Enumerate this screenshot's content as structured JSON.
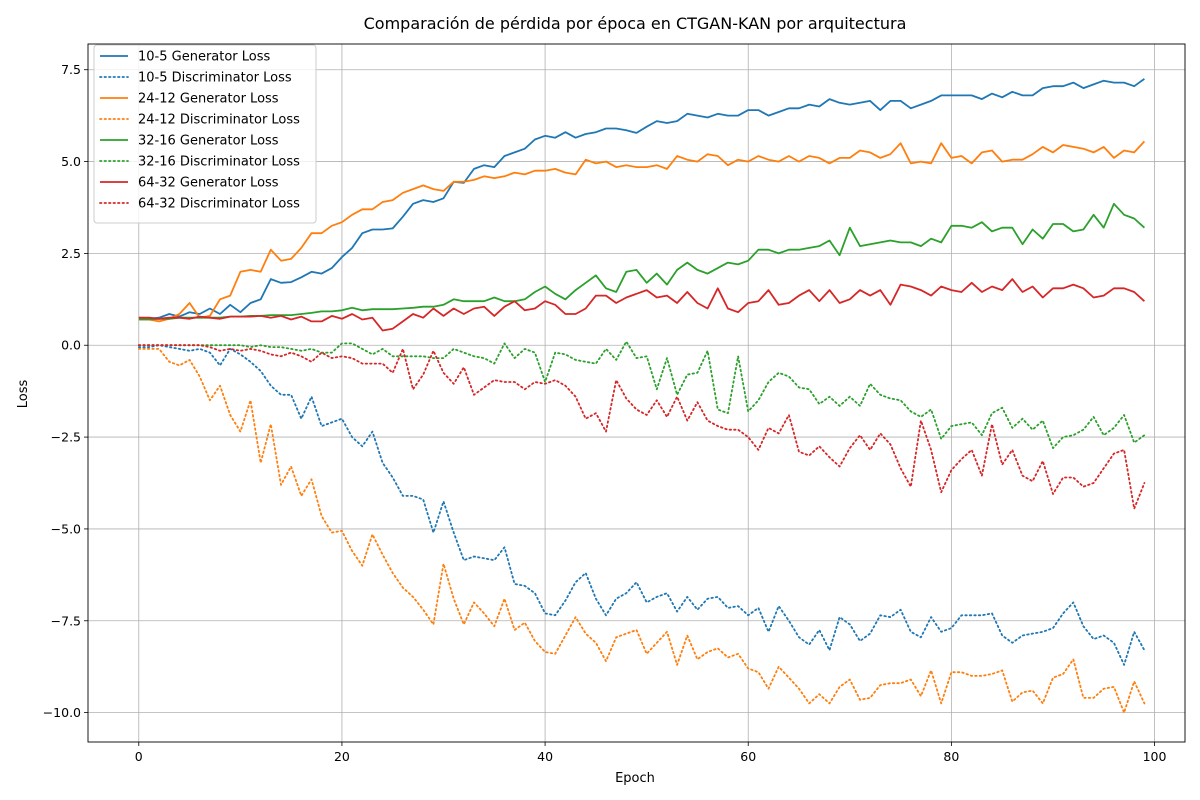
{
  "chart_data": {
    "type": "line",
    "title": "Comparación de pérdida por época en CTGAN-KAN por arquitectura",
    "xlabel": "Epoch",
    "ylabel": "Loss",
    "xlim": [
      -5,
      103
    ],
    "ylim": [
      -10.8,
      8.2
    ],
    "xticks": [
      0,
      20,
      40,
      60,
      80,
      100
    ],
    "xtick_labels": [
      "0",
      "20",
      "40",
      "60",
      "80",
      "100"
    ],
    "yticks": [
      -10.0,
      -7.5,
      -5.0,
      -2.5,
      0.0,
      2.5,
      5.0,
      7.5
    ],
    "ytick_labels": [
      "−10.0",
      "−7.5",
      "−5.0",
      "−2.5",
      "0.0",
      "2.5",
      "5.0",
      "7.5"
    ],
    "grid": true,
    "legend_position": "top-left",
    "x": [
      0,
      1,
      2,
      3,
      4,
      5,
      6,
      7,
      8,
      9,
      10,
      11,
      12,
      13,
      14,
      15,
      16,
      17,
      18,
      19,
      20,
      21,
      22,
      23,
      24,
      25,
      26,
      27,
      28,
      29,
      30,
      31,
      32,
      33,
      34,
      35,
      36,
      37,
      38,
      39,
      40,
      41,
      42,
      43,
      44,
      45,
      46,
      47,
      48,
      49,
      50,
      51,
      52,
      53,
      54,
      55,
      56,
      57,
      58,
      59,
      60,
      61,
      62,
      63,
      64,
      65,
      66,
      67,
      68,
      69,
      70,
      71,
      72,
      73,
      74,
      75,
      76,
      77,
      78,
      79,
      80,
      81,
      82,
      83,
      84,
      85,
      86,
      87,
      88,
      89,
      90,
      91,
      92,
      93,
      94,
      95,
      96,
      97,
      98,
      99
    ],
    "series": [
      {
        "name": "10-5 Generator Loss",
        "color": "#1f77b4",
        "style": "solid",
        "values": [
          0.75,
          0.72,
          0.75,
          0.85,
          0.78,
          0.9,
          0.85,
          1.0,
          0.85,
          1.1,
          0.9,
          1.15,
          1.25,
          1.8,
          1.7,
          1.72,
          1.85,
          2.0,
          1.95,
          2.1,
          2.4,
          2.65,
          3.05,
          3.15,
          3.15,
          3.18,
          3.5,
          3.85,
          3.95,
          3.9,
          4.0,
          4.45,
          4.42,
          4.8,
          4.9,
          4.85,
          5.15,
          5.25,
          5.35,
          5.6,
          5.7,
          5.65,
          5.8,
          5.65,
          5.75,
          5.8,
          5.9,
          5.9,
          5.85,
          5.78,
          5.95,
          6.1,
          6.05,
          6.1,
          6.3,
          6.25,
          6.2,
          6.3,
          6.25,
          6.25,
          6.4,
          6.4,
          6.25,
          6.35,
          6.45,
          6.45,
          6.55,
          6.5,
          6.7,
          6.6,
          6.55,
          6.6,
          6.65,
          6.4,
          6.65,
          6.65,
          6.45,
          6.55,
          6.65,
          6.8,
          6.8,
          6.8,
          6.8,
          6.7,
          6.85,
          6.75,
          6.9,
          6.8,
          6.8,
          7.0,
          7.05,
          7.05,
          7.15,
          7.0,
          7.1,
          7.2,
          7.15,
          7.15,
          7.05,
          7.25
        ]
      },
      {
        "name": "10-5 Discriminator Loss",
        "color": "#1f77b4",
        "style": "dotted",
        "values": [
          -0.05,
          -0.05,
          0.0,
          -0.05,
          -0.1,
          -0.15,
          -0.1,
          -0.2,
          -0.55,
          -0.1,
          -0.25,
          -0.45,
          -0.7,
          -1.1,
          -1.35,
          -1.35,
          -2.0,
          -1.4,
          -2.2,
          -2.1,
          -2.0,
          -2.5,
          -2.75,
          -2.35,
          -3.2,
          -3.6,
          -4.1,
          -4.1,
          -4.2,
          -5.1,
          -4.25,
          -5.1,
          -5.85,
          -5.75,
          -5.8,
          -5.85,
          -5.5,
          -6.5,
          -6.55,
          -6.75,
          -7.3,
          -7.35,
          -6.95,
          -6.45,
          -6.2,
          -6.9,
          -7.35,
          -6.9,
          -6.75,
          -6.45,
          -7.0,
          -6.85,
          -6.75,
          -7.25,
          -6.85,
          -7.2,
          -6.9,
          -6.85,
          -7.15,
          -7.1,
          -7.35,
          -7.15,
          -7.8,
          -7.1,
          -7.5,
          -7.95,
          -8.15,
          -7.75,
          -8.3,
          -7.4,
          -7.6,
          -8.05,
          -7.85,
          -7.35,
          -7.4,
          -7.2,
          -7.8,
          -7.95,
          -7.4,
          -7.8,
          -7.7,
          -7.35,
          -7.35,
          -7.35,
          -7.3,
          -7.9,
          -8.1,
          -7.9,
          -7.85,
          -7.8,
          -7.7,
          -7.3,
          -7.0,
          -7.65,
          -8.0,
          -7.9,
          -8.1,
          -8.7,
          -7.8,
          -8.3
        ]
      },
      {
        "name": "24-12 Generator Loss",
        "color": "#ff7f0e",
        "style": "solid",
        "values": [
          0.7,
          0.7,
          0.65,
          0.72,
          0.85,
          1.15,
          0.75,
          0.8,
          1.25,
          1.35,
          2.0,
          2.05,
          2.0,
          2.6,
          2.3,
          2.35,
          2.65,
          3.05,
          3.05,
          3.25,
          3.35,
          3.55,
          3.7,
          3.7,
          3.9,
          3.95,
          4.15,
          4.25,
          4.35,
          4.25,
          4.2,
          4.45,
          4.45,
          4.5,
          4.6,
          4.55,
          4.6,
          4.7,
          4.65,
          4.75,
          4.75,
          4.8,
          4.7,
          4.65,
          5.05,
          4.95,
          5.0,
          4.85,
          4.9,
          4.85,
          4.85,
          4.9,
          4.8,
          5.15,
          5.05,
          5.0,
          5.2,
          5.15,
          4.9,
          5.05,
          5.0,
          5.15,
          5.05,
          5.0,
          5.15,
          5.0,
          5.15,
          5.1,
          4.95,
          5.1,
          5.1,
          5.3,
          5.25,
          5.1,
          5.2,
          5.5,
          4.95,
          5.0,
          4.95,
          5.5,
          5.1,
          5.15,
          4.95,
          5.25,
          5.3,
          5.0,
          5.05,
          5.05,
          5.2,
          5.4,
          5.25,
          5.45,
          5.4,
          5.35,
          5.25,
          5.4,
          5.1,
          5.3,
          5.25,
          5.55
        ]
      },
      {
        "name": "24-12 Discriminator Loss",
        "color": "#ff7f0e",
        "style": "dotted",
        "values": [
          -0.1,
          -0.1,
          -0.1,
          -0.45,
          -0.55,
          -0.4,
          -0.85,
          -1.5,
          -1.1,
          -1.9,
          -2.35,
          -1.5,
          -3.2,
          -2.15,
          -3.8,
          -3.3,
          -4.1,
          -3.65,
          -4.65,
          -5.1,
          -5.05,
          -5.6,
          -6.0,
          -5.15,
          -5.7,
          -6.2,
          -6.6,
          -6.85,
          -7.2,
          -7.6,
          -5.95,
          -6.9,
          -7.6,
          -7.0,
          -7.3,
          -7.65,
          -6.9,
          -7.75,
          -7.55,
          -8.05,
          -8.35,
          -8.4,
          -7.9,
          -7.4,
          -7.85,
          -8.1,
          -8.6,
          -7.95,
          -7.85,
          -7.75,
          -8.4,
          -8.1,
          -7.8,
          -8.7,
          -7.9,
          -8.55,
          -8.35,
          -8.25,
          -8.5,
          -8.4,
          -8.8,
          -8.9,
          -9.35,
          -8.75,
          -9.05,
          -9.35,
          -9.75,
          -9.5,
          -9.75,
          -9.3,
          -9.1,
          -9.65,
          -9.6,
          -9.25,
          -9.2,
          -9.2,
          -9.1,
          -9.55,
          -8.85,
          -9.75,
          -8.9,
          -8.9,
          -9.0,
          -9.0,
          -8.95,
          -8.85,
          -9.7,
          -9.45,
          -9.4,
          -9.75,
          -9.05,
          -8.95,
          -8.55,
          -9.6,
          -9.6,
          -9.35,
          -9.3,
          -10.0,
          -9.15,
          -9.75
        ]
      },
      {
        "name": "32-16 Generator Loss",
        "color": "#2ca02c",
        "style": "solid",
        "values": [
          0.7,
          0.7,
          0.72,
          0.72,
          0.75,
          0.75,
          0.75,
          0.75,
          0.75,
          0.78,
          0.78,
          0.8,
          0.8,
          0.82,
          0.82,
          0.82,
          0.85,
          0.88,
          0.92,
          0.92,
          0.95,
          1.02,
          0.95,
          0.98,
          0.98,
          0.98,
          1.0,
          1.02,
          1.05,
          1.05,
          1.1,
          1.25,
          1.2,
          1.2,
          1.2,
          1.3,
          1.2,
          1.2,
          1.25,
          1.45,
          1.6,
          1.4,
          1.25,
          1.5,
          1.7,
          1.9,
          1.55,
          1.45,
          2.0,
          2.05,
          1.7,
          1.95,
          1.65,
          2.05,
          2.25,
          2.05,
          1.95,
          2.1,
          2.25,
          2.2,
          2.3,
          2.6,
          2.6,
          2.5,
          2.6,
          2.6,
          2.65,
          2.7,
          2.85,
          2.45,
          3.2,
          2.7,
          2.75,
          2.8,
          2.85,
          2.8,
          2.8,
          2.7,
          2.9,
          2.8,
          3.25,
          3.25,
          3.2,
          3.35,
          3.1,
          3.2,
          3.2,
          2.75,
          3.15,
          2.9,
          3.3,
          3.3,
          3.1,
          3.15,
          3.55,
          3.2,
          3.85,
          3.55,
          3.45,
          3.2
        ]
      },
      {
        "name": "32-16 Discriminator Loss",
        "color": "#2ca02c",
        "style": "dotted",
        "values": [
          0.0,
          0.0,
          0.0,
          0.0,
          0.0,
          0.0,
          0.0,
          0.0,
          0.0,
          0.0,
          0.0,
          -0.05,
          0.0,
          -0.05,
          -0.05,
          -0.1,
          -0.15,
          -0.1,
          -0.2,
          -0.2,
          0.05,
          0.05,
          -0.1,
          -0.25,
          -0.1,
          -0.3,
          -0.3,
          -0.3,
          -0.3,
          -0.35,
          -0.35,
          -0.1,
          -0.2,
          -0.3,
          -0.35,
          -0.5,
          0.05,
          -0.35,
          -0.1,
          -0.2,
          -1.0,
          -0.2,
          -0.25,
          -0.4,
          -0.45,
          -0.5,
          -0.1,
          -0.4,
          0.1,
          -0.35,
          -0.3,
          -1.2,
          -0.35,
          -1.35,
          -0.8,
          -0.75,
          -0.15,
          -1.75,
          -1.85,
          -0.3,
          -1.8,
          -1.5,
          -1.0,
          -0.75,
          -0.85,
          -1.15,
          -1.2,
          -1.6,
          -1.4,
          -1.65,
          -1.4,
          -1.65,
          -1.05,
          -1.35,
          -1.45,
          -1.5,
          -1.8,
          -1.95,
          -1.75,
          -2.55,
          -2.2,
          -2.15,
          -2.1,
          -2.45,
          -1.85,
          -1.7,
          -2.25,
          -2.0,
          -2.3,
          -2.05,
          -2.8,
          -2.5,
          -2.45,
          -2.3,
          -1.95,
          -2.45,
          -2.25,
          -1.9,
          -2.65,
          -2.45
        ]
      },
      {
        "name": "64-32 Generator Loss",
        "color": "#d62728",
        "style": "solid",
        "values": [
          0.75,
          0.75,
          0.72,
          0.75,
          0.75,
          0.72,
          0.78,
          0.75,
          0.72,
          0.78,
          0.78,
          0.78,
          0.8,
          0.75,
          0.8,
          0.7,
          0.78,
          0.65,
          0.65,
          0.8,
          0.72,
          0.85,
          0.7,
          0.75,
          0.4,
          0.45,
          0.65,
          0.85,
          0.75,
          1.0,
          0.8,
          1.0,
          0.85,
          1.0,
          1.05,
          0.8,
          1.05,
          1.2,
          0.95,
          1.0,
          1.2,
          1.1,
          0.85,
          0.85,
          1.0,
          1.35,
          1.35,
          1.15,
          1.3,
          1.4,
          1.5,
          1.3,
          1.35,
          1.15,
          1.45,
          1.15,
          1.0,
          1.55,
          1.0,
          0.9,
          1.15,
          1.2,
          1.5,
          1.1,
          1.15,
          1.35,
          1.5,
          1.2,
          1.5,
          1.15,
          1.25,
          1.5,
          1.35,
          1.5,
          1.1,
          1.65,
          1.6,
          1.5,
          1.35,
          1.6,
          1.5,
          1.45,
          1.7,
          1.45,
          1.6,
          1.5,
          1.8,
          1.45,
          1.6,
          1.3,
          1.55,
          1.55,
          1.65,
          1.55,
          1.3,
          1.35,
          1.55,
          1.55,
          1.45,
          1.2
        ]
      },
      {
        "name": "64-32 Discriminator Loss",
        "color": "#d62728",
        "style": "dotted",
        "values": [
          0.0,
          0.0,
          0.0,
          0.0,
          0.0,
          0.0,
          0.0,
          -0.05,
          -0.15,
          -0.1,
          -0.15,
          -0.1,
          -0.15,
          -0.25,
          -0.3,
          -0.2,
          -0.3,
          -0.45,
          -0.2,
          -0.35,
          -0.3,
          -0.35,
          -0.5,
          -0.5,
          -0.5,
          -0.75,
          -0.1,
          -1.2,
          -0.8,
          -0.15,
          -0.75,
          -1.05,
          -0.6,
          -1.35,
          -1.15,
          -0.95,
          -1.0,
          -1.0,
          -1.2,
          -1.0,
          -1.05,
          -0.95,
          -1.1,
          -1.4,
          -2.0,
          -1.85,
          -2.35,
          -0.95,
          -1.45,
          -1.75,
          -1.9,
          -1.5,
          -1.95,
          -1.4,
          -2.05,
          -1.55,
          -2.05,
          -2.2,
          -2.3,
          -2.3,
          -2.5,
          -2.85,
          -2.25,
          -2.4,
          -1.9,
          -2.9,
          -3.0,
          -2.75,
          -3.05,
          -3.3,
          -2.8,
          -2.45,
          -2.85,
          -2.4,
          -2.7,
          -3.35,
          -3.85,
          -2.05,
          -2.85,
          -4.0,
          -3.4,
          -3.1,
          -2.85,
          -3.55,
          -2.15,
          -3.25,
          -2.85,
          -3.55,
          -3.7,
          -3.15,
          -4.05,
          -3.6,
          -3.6,
          -3.85,
          -3.75,
          -3.35,
          -2.95,
          -2.85,
          -4.45,
          -3.75
        ]
      }
    ]
  }
}
